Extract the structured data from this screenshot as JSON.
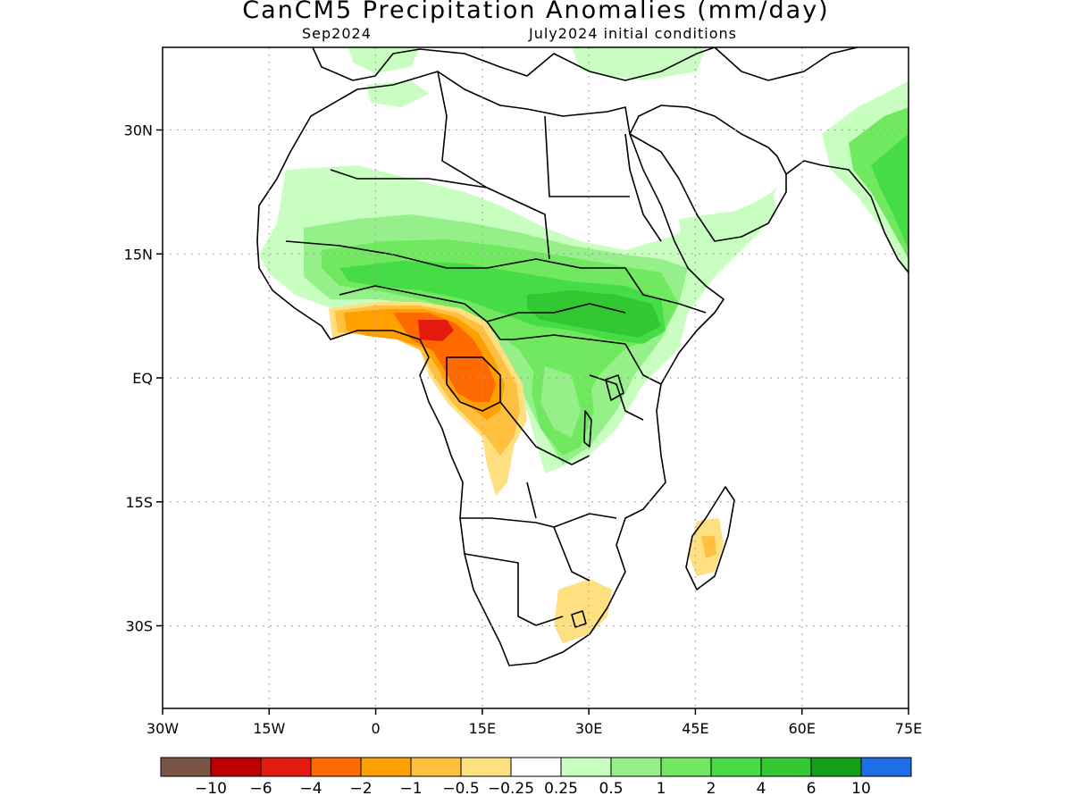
{
  "title": "CanCM5 Precipitation Anomalies (mm/day)",
  "subtitle_left": "Sep2024",
  "subtitle_right": "July2024 initial conditions",
  "map": {
    "lon_range": [
      -30,
      75
    ],
    "lat_range": [
      -40,
      40
    ],
    "lon_ticks": [
      {
        "value": -30,
        "label": "30W"
      },
      {
        "value": -15,
        "label": "15W"
      },
      {
        "value": 0,
        "label": "0"
      },
      {
        "value": 15,
        "label": "15E"
      },
      {
        "value": 30,
        "label": "30E"
      },
      {
        "value": 45,
        "label": "45E"
      },
      {
        "value": 60,
        "label": "60E"
      },
      {
        "value": 75,
        "label": "75E"
      }
    ],
    "lat_ticks": [
      {
        "value": 30,
        "label": "30N"
      },
      {
        "value": 15,
        "label": "15N"
      },
      {
        "value": 0,
        "label": "EQ"
      },
      {
        "value": -15,
        "label": "15S"
      },
      {
        "value": -30,
        "label": "30S"
      }
    ],
    "grid": "dotted"
  },
  "colorbar": {
    "colors": [
      "#7b5448",
      "#bf0000",
      "#e31a0e",
      "#ff6a00",
      "#ffa000",
      "#ffc040",
      "#ffe080",
      "#ffffff",
      "#c8ffc0",
      "#96f08a",
      "#70e860",
      "#46dc46",
      "#32c832",
      "#14a014",
      "#1e6ee6"
    ],
    "labels": [
      "−10",
      "−6",
      "−4",
      "−2",
      "−1",
      "−0.5",
      "−0.25",
      "0.25",
      "0.5",
      "1",
      "2",
      "4",
      "6",
      "10"
    ]
  }
}
